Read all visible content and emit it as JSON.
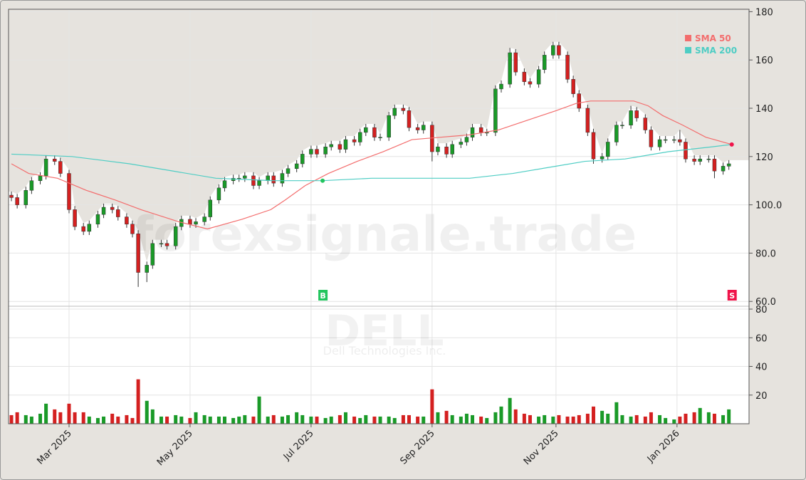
{
  "chart_data": {
    "type": "candlestick",
    "watermark": "forexsignale.trade",
    "symbol": "DELL",
    "company": "Dell Technologies Inc.",
    "x": [
      0,
      2,
      5,
      7,
      10,
      12,
      15,
      17,
      20,
      22,
      25,
      27,
      30,
      32,
      35,
      37,
      40,
      42,
      44,
      47,
      49,
      52,
      54,
      57,
      59,
      62,
      64,
      67,
      69,
      72,
      74,
      77,
      79,
      81,
      84,
      86,
      89,
      91,
      94,
      96,
      99,
      101,
      104,
      106,
      109,
      111,
      114,
      116,
      119,
      121,
      123,
      126,
      128,
      131,
      133,
      136,
      138,
      141,
      143,
      146,
      148,
      151,
      153,
      156,
      158,
      160,
      163,
      165,
      168,
      170,
      173,
      175,
      178,
      180,
      183,
      185,
      188,
      190,
      193,
      195,
      197,
      200,
      202,
      205,
      207,
      210,
      212,
      215,
      217,
      220,
      222,
      225,
      227,
      230,
      232,
      234,
      237,
      239,
      242,
      244,
      247,
      249
    ],
    "open": [
      104,
      103,
      100,
      106,
      110,
      112,
      119,
      118,
      113,
      98,
      91,
      89,
      92,
      96,
      99,
      98,
      95,
      92,
      88,
      72,
      75,
      84,
      84,
      83,
      91,
      94,
      92,
      93,
      95,
      102,
      107,
      110,
      111,
      111,
      112,
      108,
      110,
      112,
      109,
      113,
      115,
      117,
      121,
      123,
      121,
      124,
      125,
      123,
      127,
      126,
      130,
      132,
      128,
      128,
      137,
      140,
      139,
      132,
      131,
      133,
      122,
      124,
      121,
      125,
      126,
      128,
      132,
      130,
      130,
      148,
      150,
      163,
      155,
      151,
      150,
      156,
      162,
      166,
      162,
      152,
      146,
      140,
      130,
      119,
      120,
      126,
      133,
      133,
      139,
      136,
      131,
      124,
      127,
      127,
      127,
      126,
      119,
      118,
      119,
      119,
      114,
      116
    ],
    "high": [
      105.5,
      104.5,
      107.5,
      111.5,
      113.5,
      120.5,
      120.5,
      119.5,
      114.5,
      99.5,
      92.5,
      93.5,
      97.5,
      100.5,
      100.5,
      99.5,
      96.5,
      93.5,
      89.5,
      76.5,
      85.5,
      85.5,
      85.5,
      92.5,
      95.5,
      95.5,
      94.5,
      96.5,
      103.5,
      108.5,
      111.5,
      112.5,
      112.5,
      113.5,
      113.5,
      111.5,
      113.5,
      113.5,
      114.5,
      116.5,
      118.5,
      122.5,
      124.5,
      124.5,
      125.5,
      126.5,
      126.5,
      128.5,
      128.5,
      131.5,
      133.5,
      133.5,
      129.5,
      138.5,
      141.5,
      141.5,
      140.5,
      133.5,
      134.5,
      134.5,
      125.5,
      125.5,
      126.5,
      127.5,
      129.5,
      133.5,
      133.5,
      131.5,
      149.5,
      151.5,
      165,
      164.5,
      156.5,
      152.5,
      157.5,
      163.5,
      167.5,
      167.5,
      163.5,
      153.5,
      147.5,
      141.5,
      131.5,
      121.5,
      127.5,
      134.5,
      134.5,
      141,
      140.5,
      137.5,
      132.5,
      128.5,
      128.5,
      128.5,
      131,
      127.5,
      120.5,
      120.5,
      120.5,
      120.5,
      117.5,
      118.5
    ],
    "low": [
      101.5,
      98.5,
      98.5,
      104.5,
      108.5,
      110.5,
      116.5,
      111.5,
      96.5,
      89.5,
      87.5,
      87.5,
      90.5,
      94.5,
      96.5,
      93.5,
      90.5,
      86.5,
      66,
      68,
      73.5,
      82.5,
      81.5,
      81.5,
      89.5,
      90.5,
      90.5,
      91.5,
      93.5,
      100.5,
      105.5,
      108.5,
      109.5,
      109.5,
      106.5,
      106.5,
      108.5,
      107.5,
      107.5,
      111.5,
      113.5,
      115.5,
      119.5,
      119.5,
      119.5,
      122.5,
      121.5,
      121.5,
      124.5,
      124.5,
      128.5,
      126.5,
      126.5,
      126.5,
      135.5,
      137.5,
      130.5,
      129.5,
      129.5,
      118,
      120.5,
      119.5,
      119.5,
      123.5,
      124.5,
      126.5,
      128.5,
      128.5,
      128.5,
      146.5,
      148.5,
      153.5,
      149.5,
      148.5,
      148.5,
      154.5,
      160.5,
      160.5,
      150.5,
      144.5,
      138.5,
      128.5,
      117,
      117.5,
      118.5,
      124.5,
      131.5,
      131.5,
      134.5,
      129.5,
      122.5,
      122.5,
      125.5,
      125.5,
      124.5,
      117.5,
      116.5,
      116.5,
      117.5,
      111,
      112.5,
      114.5
    ],
    "close": [
      103,
      100,
      106,
      110,
      112,
      119,
      118,
      113,
      98,
      91,
      89,
      92,
      96,
      99,
      98,
      95,
      92,
      88,
      72,
      75,
      84,
      84,
      83,
      91,
      94,
      92,
      93,
      95,
      102,
      107,
      110,
      111,
      111,
      112,
      108,
      110,
      112,
      109,
      113,
      115,
      117,
      121,
      123,
      121,
      124,
      125,
      123,
      127,
      126,
      130,
      132,
      128,
      128,
      137,
      140,
      139,
      132,
      131,
      133,
      122,
      124,
      121,
      125,
      126,
      128,
      132,
      130,
      130,
      148,
      150,
      163,
      155,
      151,
      150,
      156,
      162,
      166,
      162,
      152,
      146,
      140,
      130,
      119,
      120,
      126,
      133,
      133,
      139,
      136,
      131,
      124,
      127,
      127,
      127,
      126,
      119,
      118,
      119,
      119,
      114,
      116,
      117
    ],
    "volume": [
      6,
      8,
      6,
      5,
      7,
      14,
      10,
      8,
      14,
      8,
      8,
      5,
      4,
      5,
      7,
      5,
      6,
      4,
      31,
      16,
      10,
      5,
      5,
      6,
      5,
      4,
      8,
      6,
      5,
      5,
      5,
      4,
      5,
      6,
      5,
      19,
      5,
      6,
      5,
      6,
      8,
      6,
      5,
      5,
      4,
      5,
      6,
      8,
      5,
      4,
      6,
      5,
      5,
      5,
      4,
      6,
      6,
      5,
      5,
      24,
      8,
      9,
      6,
      5,
      7,
      6,
      5,
      4,
      8,
      12,
      18,
      10,
      7,
      6,
      5,
      6,
      5,
      6,
      5,
      5,
      6,
      7,
      12,
      9,
      7,
      15,
      6,
      5,
      6,
      5,
      8,
      6,
      4,
      3,
      5,
      7,
      8,
      11,
      8,
      7,
      6,
      10
    ],
    "up_color": "#1a9a28",
    "down_color": "#d42020",
    "xlim": [
      -1,
      256
    ],
    "xticks": [
      {
        "value": 20,
        "label": "Mar 2025"
      },
      {
        "value": 62,
        "label": "May 2025"
      },
      {
        "value": 104,
        "label": "Jul 2025"
      },
      {
        "value": 146,
        "label": "Sep 2025"
      },
      {
        "value": 189,
        "label": "Nov 2025"
      },
      {
        "value": 231,
        "label": "Jan 2026"
      }
    ],
    "ylim": [
      58,
      181
    ],
    "yticks": [
      {
        "value": 60,
        "label": "60.0"
      },
      {
        "value": 80,
        "label": "80.0"
      },
      {
        "value": 100,
        "label": "100.0"
      },
      120,
      140,
      160,
      180
    ],
    "volume_ylim": [
      0,
      82
    ],
    "volume_yticks": [
      20,
      40,
      60,
      80
    ],
    "series": [
      {
        "name": "SMA 50",
        "color": "#f36d6d",
        "x": [
          0,
          6,
          16,
          26,
          36,
          45,
          58,
          68,
          80,
          90,
          95,
          102,
          110,
          120,
          129,
          139,
          149,
          159,
          169,
          179,
          189,
          196,
          201,
          208,
          216,
          221,
          226,
          233,
          241,
          250
        ],
        "values": [
          117,
          113,
          111,
          106,
          102,
          98,
          93,
          90,
          94,
          98,
          102,
          108,
          113,
          118,
          122,
          127,
          128,
          129,
          131,
          135,
          139,
          142,
          143,
          143,
          143,
          141,
          137,
          133,
          128,
          125
        ]
      },
      {
        "name": "SMA 200",
        "color": "#4ecdc4",
        "x": [
          0,
          21,
          41,
          56,
          71,
          91,
          108,
          125,
          145,
          159,
          174,
          189,
          199,
          213,
          228,
          243,
          250
        ],
        "values": [
          121,
          120,
          117,
          114,
          111,
          110,
          110,
          111,
          111,
          111,
          113,
          116,
          118,
          119,
          122,
          124,
          125
        ]
      }
    ],
    "signals": [
      {
        "label": "B",
        "x": 108,
        "value": 110,
        "color": "#22c55e"
      },
      {
        "label": "S",
        "x": 250,
        "value": 125,
        "color": "#f0144a"
      }
    ],
    "grid": true,
    "legend": "upper right"
  }
}
